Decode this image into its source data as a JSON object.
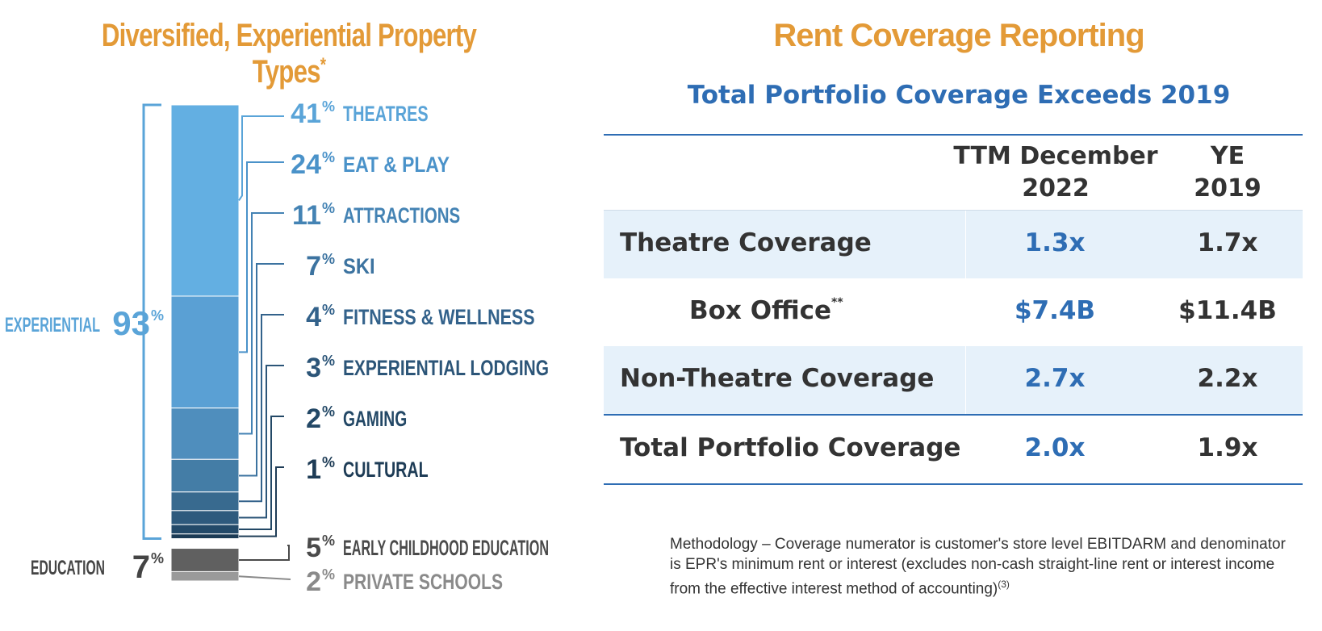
{
  "left": {
    "title": "Diversified, Experiential Property Types",
    "title_mark": "*"
  },
  "right": {
    "title": "Rent Coverage Reporting",
    "subtitle": "Total Portfolio Coverage Exceeds 2019",
    "headers": {
      "col1_line1": "TTM December",
      "col1_line2": "2022",
      "col2_line1": "YE",
      "col2_line2": "2019"
    },
    "rows": [
      {
        "label": "Theatre Coverage",
        "mark": "",
        "ttm": "1.3x",
        "ye": "1.7x"
      },
      {
        "label": "Box Office",
        "mark": "**",
        "ttm": "$7.4B",
        "ye": "$11.4B"
      },
      {
        "label": "Non-Theatre Coverage",
        "mark": "",
        "ttm": "2.7x",
        "ye": "2.2x"
      },
      {
        "label": "Total Portfolio Coverage",
        "mark": "",
        "ttm": "2.0x",
        "ye": "1.9x"
      }
    ],
    "footnote": "Methodology – Coverage numerator is customer's store level EBITDARM and denominator is EPR's minimum rent or interest (excludes non-cash straight-line rent or interest income from the effective interest method of accounting)",
    "footnote_ref": "(3)"
  },
  "colors": {
    "accent_orange": "#E39A37",
    "accent_blue": "#2E6DB4",
    "row_shade": "#E6F1FA"
  },
  "chart_data": {
    "type": "bar",
    "orientation": "stacked",
    "unit": "%",
    "groups": [
      {
        "label": "EXPERIENTIAL",
        "value": 93
      },
      {
        "label": "EDUCATION",
        "value": 7
      }
    ],
    "segments": [
      {
        "label": "THEATRES",
        "value": 41,
        "group": "EXPERIENTIAL",
        "color": "#63AFE2",
        "text_color": "#5AA4D8"
      },
      {
        "label": "EAT & PLAY",
        "value": 24,
        "group": "EXPERIENTIAL",
        "color": "#5AA0D4",
        "text_color": "#4A92C9"
      },
      {
        "label": "ATTRACTIONS",
        "value": 11,
        "group": "EXPERIENTIAL",
        "color": "#4F8EBD",
        "text_color": "#4483B4"
      },
      {
        "label": "SKI",
        "value": 7,
        "group": "EXPERIENTIAL",
        "color": "#447DA6",
        "text_color": "#3C73A0"
      },
      {
        "label": "FITNESS & WELLNESS",
        "value": 4,
        "group": "EXPERIENTIAL",
        "color": "#386A8F",
        "text_color": "#33628B"
      },
      {
        "label": "EXPERIENTIAL LODGING",
        "value": 3,
        "group": "EXPERIENTIAL",
        "color": "#2E5A7D",
        "text_color": "#2C5578"
      },
      {
        "label": "GAMING",
        "value": 2,
        "group": "EXPERIENTIAL",
        "color": "#234A69",
        "text_color": "#234866"
      },
      {
        "label": "CULTURAL",
        "value": 1,
        "group": "EXPERIENTIAL",
        "color": "#1B3B55",
        "text_color": "#1E3C56"
      },
      {
        "label": "EARLY CHILDHOOD EDUCATION",
        "value": 5,
        "group": "EDUCATION",
        "color": "#606060",
        "text_color": "#4A4A4A"
      },
      {
        "label": "PRIVATE SCHOOLS",
        "value": 2,
        "group": "EDUCATION",
        "color": "#9A9A9A",
        "text_color": "#8A8A8A"
      }
    ],
    "group_colors": {
      "EXPERIENTIAL": "#5AA4D8",
      "EDUCATION": "#444444"
    }
  }
}
